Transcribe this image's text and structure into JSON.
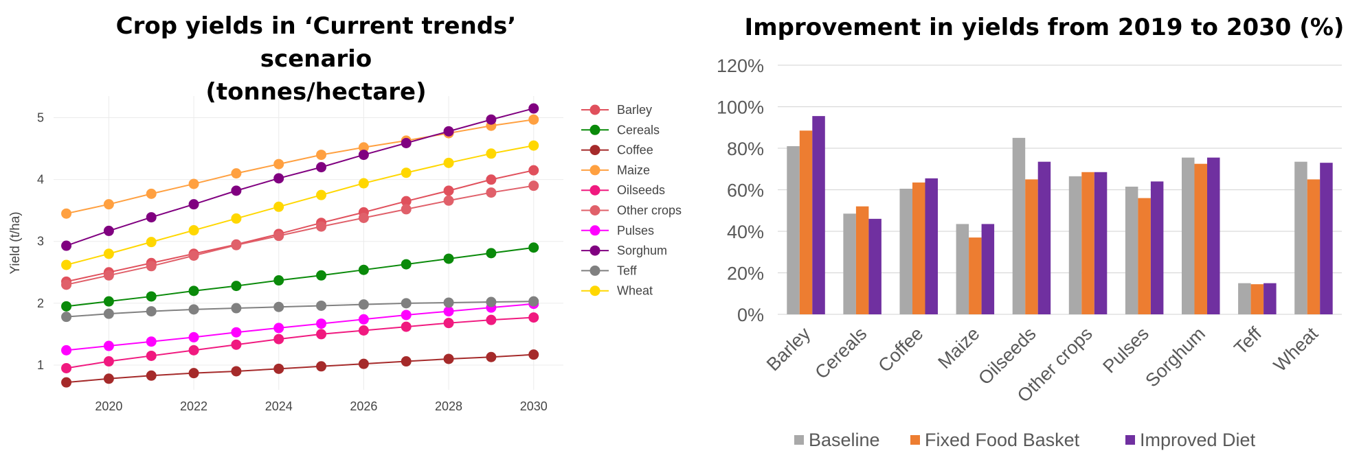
{
  "chart_data": [
    {
      "type": "line",
      "title": "Crop yields in ‘Current trends’ scenario (tonnes/hectare)",
      "title_lines": [
        "Crop yields in ‘Current trends’ scenario",
        "(tonnes/hectare)"
      ],
      "xlabel": "",
      "ylabel": "Yield (t/ha)",
      "x": [
        2019,
        2020,
        2021,
        2022,
        2023,
        2024,
        2025,
        2026,
        2027,
        2028,
        2029,
        2030
      ],
      "xlim": [
        2018.7,
        2030.7
      ],
      "ylim": [
        0.6,
        5.35
      ],
      "xticks": [
        2020,
        2022,
        2024,
        2026,
        2028,
        2030
      ],
      "yticks": [
        1,
        2,
        3,
        4,
        5
      ],
      "grid": true,
      "legend": "right",
      "series": [
        {
          "name": "Barley",
          "color": "#e0505c",
          "values": [
            2.35,
            2.5,
            2.65,
            2.8,
            2.95,
            3.12,
            3.3,
            3.47,
            3.65,
            3.82,
            4.0,
            4.15
          ]
        },
        {
          "name": "Cereals",
          "color": "#0a8a0a",
          "values": [
            1.95,
            2.03,
            2.11,
            2.2,
            2.28,
            2.37,
            2.45,
            2.54,
            2.63,
            2.72,
            2.81,
            2.9
          ]
        },
        {
          "name": "Coffee",
          "color": "#a52a2a",
          "values": [
            0.72,
            0.78,
            0.83,
            0.87,
            0.9,
            0.94,
            0.98,
            1.02,
            1.06,
            1.1,
            1.13,
            1.17
          ]
        },
        {
          "name": "Maize",
          "color": "#ffa040",
          "values": [
            3.45,
            3.6,
            3.77,
            3.93,
            4.1,
            4.25,
            4.4,
            4.52,
            4.63,
            4.75,
            4.87,
            4.97
          ]
        },
        {
          "name": "Oilseeds",
          "color": "#f0197f",
          "values": [
            0.95,
            1.06,
            1.15,
            1.24,
            1.33,
            1.42,
            1.5,
            1.56,
            1.62,
            1.68,
            1.73,
            1.77
          ]
        },
        {
          "name": "Other crops",
          "color": "#e0606a",
          "values": [
            2.3,
            2.45,
            2.6,
            2.77,
            2.94,
            3.09,
            3.24,
            3.38,
            3.52,
            3.66,
            3.79,
            3.9
          ]
        },
        {
          "name": "Pulses",
          "color": "#ff00ff",
          "values": [
            1.24,
            1.31,
            1.38,
            1.45,
            1.53,
            1.6,
            1.67,
            1.74,
            1.81,
            1.87,
            1.93,
            1.99
          ]
        },
        {
          "name": "Sorghum",
          "color": "#800080",
          "values": [
            2.93,
            3.17,
            3.39,
            3.6,
            3.82,
            4.02,
            4.2,
            4.4,
            4.59,
            4.78,
            4.97,
            5.15
          ]
        },
        {
          "name": "Teff",
          "color": "#808080",
          "values": [
            1.78,
            1.83,
            1.87,
            1.9,
            1.92,
            1.94,
            1.96,
            1.98,
            2.0,
            2.01,
            2.02,
            2.03
          ]
        },
        {
          "name": "Wheat",
          "color": "#ffd700",
          "values": [
            2.62,
            2.8,
            2.99,
            3.18,
            3.37,
            3.56,
            3.75,
            3.94,
            4.11,
            4.27,
            4.42,
            4.55
          ]
        }
      ]
    },
    {
      "type": "bar",
      "title": "Improvement in yields from 2019 to 2030 (%)",
      "xlabel": "",
      "ylabel": "",
      "categories": [
        "Barley",
        "Cereals",
        "Coffee",
        "Maize",
        "Oilseeds",
        "Other crops",
        "Pulses",
        "Sorghum",
        "Teff",
        "Wheat"
      ],
      "ylim": [
        0,
        120
      ],
      "yticks": [
        0,
        20,
        40,
        60,
        80,
        100,
        120
      ],
      "ytick_labels": [
        "0%",
        "20%",
        "40%",
        "60%",
        "80%",
        "100%",
        "120%"
      ],
      "grid": true,
      "legend": "bottom",
      "series": [
        {
          "name": "Baseline",
          "color": "#a9a9a9",
          "values": [
            81,
            48.5,
            60.5,
            43.5,
            85,
            66.5,
            61.5,
            75.5,
            15,
            73.5
          ]
        },
        {
          "name": "Fixed Food Basket",
          "color": "#ed7d31",
          "values": [
            88.5,
            52,
            63.5,
            37,
            65,
            68.5,
            56,
            72.5,
            14.5,
            65
          ]
        },
        {
          "name": "Improved Diet",
          "color": "#7030a0",
          "values": [
            95.5,
            46,
            65.5,
            43.5,
            73.5,
            68.5,
            64,
            75.5,
            15,
            73
          ]
        }
      ]
    }
  ]
}
